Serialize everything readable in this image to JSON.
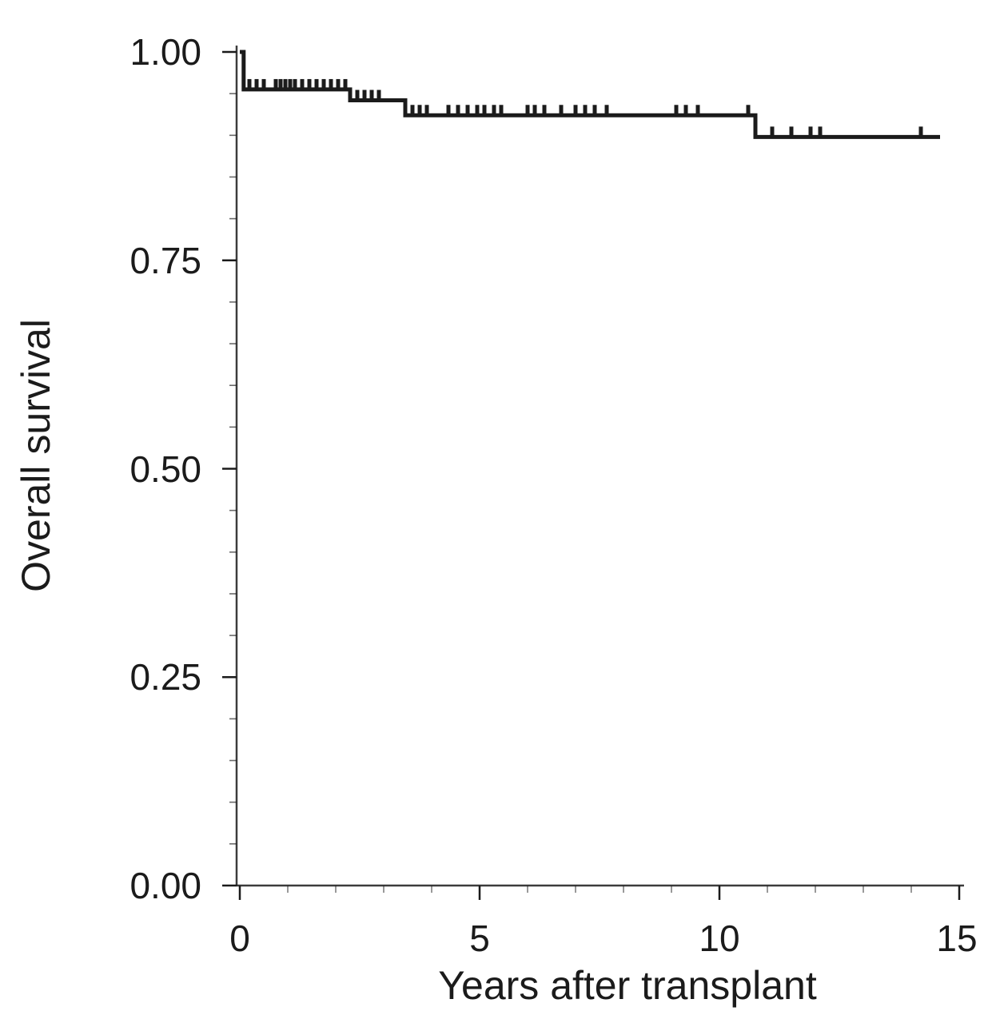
{
  "figure": {
    "background": "#ffffff",
    "ink_color": "#1b1b1b"
  },
  "chart_data": {
    "type": "line",
    "subtype": "kaplan_meier_step",
    "title": "",
    "xlabel": "Years after transplant",
    "ylabel": "Overall survival",
    "xlim": [
      0,
      15
    ],
    "ylim": [
      0,
      1
    ],
    "xticks": [
      0,
      5,
      10,
      15
    ],
    "xtick_labels": [
      "0",
      "5",
      "10",
      "15"
    ],
    "yticks": [
      0,
      0.25,
      0.5,
      0.75,
      1
    ],
    "ytick_labels": [
      "0.00",
      "0.25",
      "0.50",
      "0.75",
      "1.00"
    ],
    "x_minor_step": 1,
    "y_minor_step": 0.05,
    "grid": false,
    "legend": "none",
    "series": [
      {
        "name": "Overall survival",
        "steps": [
          {
            "x": 0,
            "y": 1.0
          },
          {
            "x": 0.08,
            "y": 0.955
          },
          {
            "x": 2.3,
            "y": 0.942
          },
          {
            "x": 3.45,
            "y": 0.924
          },
          {
            "x": 10.75,
            "y": 0.898
          }
        ],
        "end_x": 14.6,
        "censor_marks_x": [
          0.2,
          0.35,
          0.5,
          0.75,
          0.85,
          0.95,
          1.05,
          1.15,
          1.3,
          1.45,
          1.6,
          1.75,
          1.9,
          2.05,
          2.2,
          2.45,
          2.6,
          2.75,
          2.9,
          3.6,
          3.75,
          3.9,
          4.35,
          4.55,
          4.75,
          4.95,
          5.1,
          5.3,
          5.45,
          6.0,
          6.15,
          6.35,
          6.7,
          7.0,
          7.2,
          7.4,
          7.65,
          9.1,
          9.3,
          9.55,
          10.6,
          11.1,
          11.5,
          11.9,
          12.1,
          14.2
        ]
      }
    ]
  }
}
